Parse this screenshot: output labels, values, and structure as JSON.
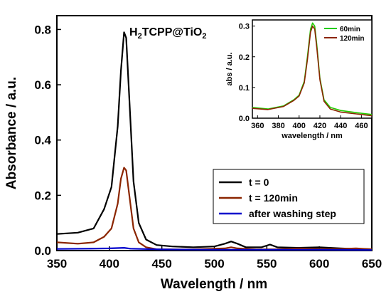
{
  "chart_data": [
    {
      "type": "line",
      "title_main": "H",
      "title_sub1": "2",
      "title_mid": "TCPP@TiO",
      "title_sub2": "2",
      "xlabel": "Wavelength / nm",
      "ylabel": "Absorbance / a.u.",
      "xlim": [
        350,
        650
      ],
      "ylim": [
        0,
        0.85
      ],
      "xticks": [
        "350",
        "400",
        "450",
        "500",
        "550",
        "600",
        "650"
      ],
      "yticks": [
        "0.0",
        "0.2",
        "0.4",
        "0.6",
        "0.8"
      ],
      "legend_position": "lower-right",
      "series": [
        {
          "name": "t = 0",
          "color": "#000000",
          "x": [
            350,
            370,
            385,
            395,
            402,
            408,
            411,
            414,
            416,
            419,
            423,
            428,
            435,
            445,
            460,
            480,
            500,
            510,
            516,
            522,
            530,
            545,
            553,
            560,
            580,
            600,
            620,
            635,
            650
          ],
          "y": [
            0.06,
            0.065,
            0.08,
            0.15,
            0.23,
            0.45,
            0.65,
            0.79,
            0.77,
            0.55,
            0.25,
            0.1,
            0.04,
            0.02,
            0.015,
            0.012,
            0.015,
            0.025,
            0.033,
            0.025,
            0.012,
            0.012,
            0.022,
            0.012,
            0.01,
            0.012,
            0.008,
            0.006,
            0.005
          ]
        },
        {
          "name": "t = 120min",
          "color": "#8B2500",
          "x": [
            350,
            370,
            385,
            395,
            402,
            408,
            411,
            414,
            416,
            419,
            423,
            428,
            435,
            445,
            480,
            510,
            516,
            522,
            540,
            560,
            580,
            600,
            620,
            635,
            650
          ],
          "y": [
            0.03,
            0.025,
            0.03,
            0.05,
            0.08,
            0.17,
            0.26,
            0.3,
            0.29,
            0.2,
            0.08,
            0.03,
            0.012,
            0.005,
            0.004,
            0.008,
            0.012,
            0.008,
            0.004,
            0.005,
            0.008,
            0.006,
            0.006,
            0.008,
            0.005
          ]
        },
        {
          "name": "after washing step",
          "color": "#0000CC",
          "x": [
            350,
            380,
            400,
            414,
            420,
            450,
            500,
            550,
            600,
            650
          ],
          "y": [
            0.006,
            0.007,
            0.008,
            0.01,
            0.007,
            0.004,
            0.003,
            0.003,
            0.003,
            0.002
          ]
        }
      ]
    },
    {
      "type": "line",
      "xlabel": "wavelength / nm",
      "ylabel": "abs / a.u.",
      "xlim": [
        355,
        470
      ],
      "ylim": [
        0,
        0.32
      ],
      "xticks": [
        "360",
        "380",
        "400",
        "420",
        "440",
        "460"
      ],
      "yticks": [
        "0.0",
        "0.1",
        "0.2",
        "0.3"
      ],
      "legend_position": "top-right",
      "series": [
        {
          "name": "60min",
          "color": "#22CC00",
          "x": [
            355,
            370,
            385,
            395,
            400,
            405,
            408,
            411,
            413,
            415,
            417,
            420,
            424,
            430,
            440,
            455,
            470
          ],
          "y": [
            0.035,
            0.03,
            0.04,
            0.06,
            0.075,
            0.12,
            0.2,
            0.29,
            0.31,
            0.3,
            0.24,
            0.13,
            0.06,
            0.035,
            0.025,
            0.018,
            0.012
          ]
        },
        {
          "name": "120min",
          "color": "#8B2500",
          "x": [
            355,
            370,
            385,
            395,
            400,
            405,
            408,
            411,
            413,
            415,
            417,
            420,
            424,
            430,
            440,
            455,
            470
          ],
          "y": [
            0.032,
            0.028,
            0.038,
            0.058,
            0.072,
            0.115,
            0.19,
            0.28,
            0.3,
            0.29,
            0.23,
            0.125,
            0.055,
            0.03,
            0.02,
            0.014,
            0.008
          ]
        }
      ]
    }
  ]
}
